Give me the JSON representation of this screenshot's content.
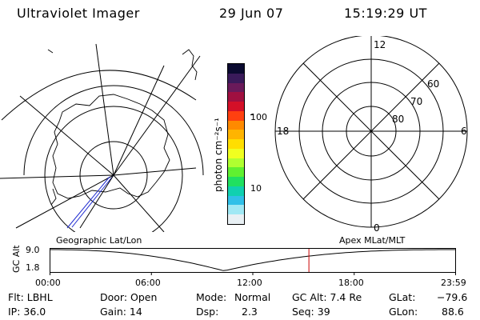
{
  "header": {
    "instrument": "Ultraviolet Imager",
    "date": "29 Jun 07",
    "time": "15:19:29 UT"
  },
  "colorbar": {
    "unit_label": "photon cm⁻²s⁻¹",
    "ticks": [
      "100",
      "10"
    ],
    "colors": [
      "#0b0a30",
      "#3a1a5a",
      "#6a1a5a",
      "#a01040",
      "#d41028",
      "#ff4010",
      "#ff8a00",
      "#ffb400",
      "#ffde00",
      "#f0ff20",
      "#b0ff30",
      "#60f030",
      "#20e060",
      "#10d0b0",
      "#30c0e8",
      "#a0e8f4",
      "#e8f0f4"
    ]
  },
  "apex_plot": {
    "mlt_labels": {
      "top": "12",
      "left": "18",
      "right": "6",
      "bottom": "0"
    },
    "mlat_labels": [
      "60",
      "70",
      "80"
    ]
  },
  "timeline": {
    "left_title": "Geographic Lat/Lon",
    "right_title": "Apex MLat/MLT",
    "axis_label": "GC Alt",
    "y_ticks": [
      "9.0",
      "1.8"
    ],
    "x_ticks": [
      "00:00",
      "06:00",
      "12:00",
      "18:00",
      "23:59"
    ],
    "current_time_hours": 15.32
  },
  "info": {
    "filter": "Flt: LBHL",
    "ip": "IP: 36.0",
    "door": "Door: Open",
    "gain": "Gain: 14",
    "mode_label": "Mode:",
    "mode_value": "Normal",
    "dsp_label": "Dsp:",
    "dsp_value": "2.3",
    "gc_alt": "GC Alt: 7.4 Re",
    "seq": "Seq: 39",
    "glat_label": "GLat:",
    "glat_value": "−79.6",
    "glon_label": "GLon:",
    "glon_value": "88.6"
  }
}
